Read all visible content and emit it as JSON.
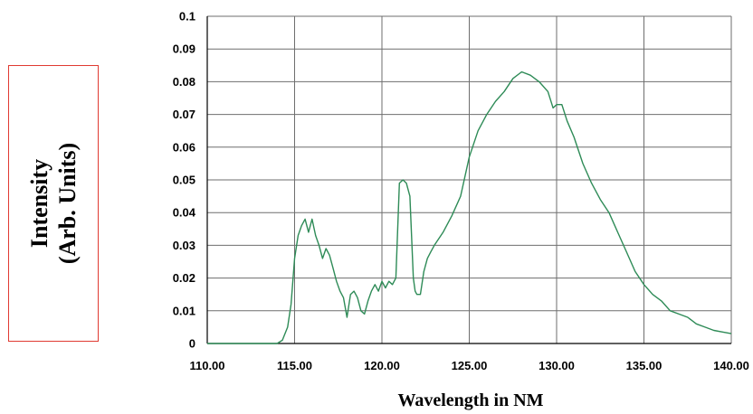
{
  "chart_data": {
    "type": "line",
    "title": "",
    "xlabel": "Wavelength in NM",
    "ylabel": [
      "Intensity",
      "(Arb. Units)"
    ],
    "xlim": [
      110,
      140
    ],
    "ylim": [
      0,
      0.1
    ],
    "x_ticks": [
      "110.00",
      "115.00",
      "120.00",
      "125.00",
      "130.00",
      "135.00",
      "140.00"
    ],
    "y_ticks": [
      "0",
      "0.01",
      "0.02",
      "0.03",
      "0.04",
      "0.05",
      "0.06",
      "0.07",
      "0.08",
      "0.09",
      "0.1"
    ],
    "grid": true,
    "line_color": "#2e8b57",
    "series": [
      {
        "x": [
          110.0,
          112.0,
          113.5,
          114.0,
          114.3,
          114.6,
          114.8,
          115.0,
          115.2,
          115.4,
          115.6,
          115.8,
          116.0,
          116.2,
          116.4,
          116.6,
          116.8,
          117.0,
          117.2,
          117.4,
          117.6,
          117.8,
          118.0,
          118.2,
          118.4,
          118.6,
          118.8,
          119.0,
          119.2,
          119.4,
          119.6,
          119.8,
          120.0,
          120.2,
          120.4,
          120.6,
          120.8,
          121.0,
          121.2,
          121.4,
          121.6,
          121.8,
          121.9,
          122.0,
          122.2,
          122.4,
          122.6,
          122.8,
          123.0,
          123.5,
          124.0,
          124.5,
          125.0,
          125.5,
          126.0,
          126.5,
          127.0,
          127.5,
          128.0,
          128.5,
          129.0,
          129.5,
          129.8,
          130.0,
          130.3,
          130.6,
          131.0,
          131.5,
          132.0,
          132.5,
          133.0,
          133.5,
          134.0,
          134.5,
          135.0,
          135.5,
          136.0,
          136.5,
          137.0,
          137.5,
          138.0,
          138.5,
          139.0,
          139.5,
          140.0
        ],
        "y": [
          0.0,
          0.0,
          0.0,
          0.0,
          0.001,
          0.005,
          0.012,
          0.026,
          0.033,
          0.036,
          0.038,
          0.034,
          0.038,
          0.033,
          0.03,
          0.026,
          0.029,
          0.027,
          0.023,
          0.019,
          0.016,
          0.014,
          0.008,
          0.015,
          0.016,
          0.014,
          0.01,
          0.009,
          0.013,
          0.016,
          0.018,
          0.016,
          0.019,
          0.017,
          0.019,
          0.018,
          0.02,
          0.049,
          0.05,
          0.049,
          0.045,
          0.02,
          0.016,
          0.015,
          0.015,
          0.022,
          0.026,
          0.028,
          0.03,
          0.034,
          0.039,
          0.045,
          0.057,
          0.065,
          0.07,
          0.074,
          0.077,
          0.081,
          0.083,
          0.082,
          0.08,
          0.077,
          0.072,
          0.073,
          0.073,
          0.068,
          0.063,
          0.055,
          0.049,
          0.044,
          0.04,
          0.034,
          0.028,
          0.022,
          0.018,
          0.015,
          0.013,
          0.01,
          0.009,
          0.008,
          0.006,
          0.005,
          0.004,
          0.0035,
          0.003
        ]
      }
    ]
  }
}
